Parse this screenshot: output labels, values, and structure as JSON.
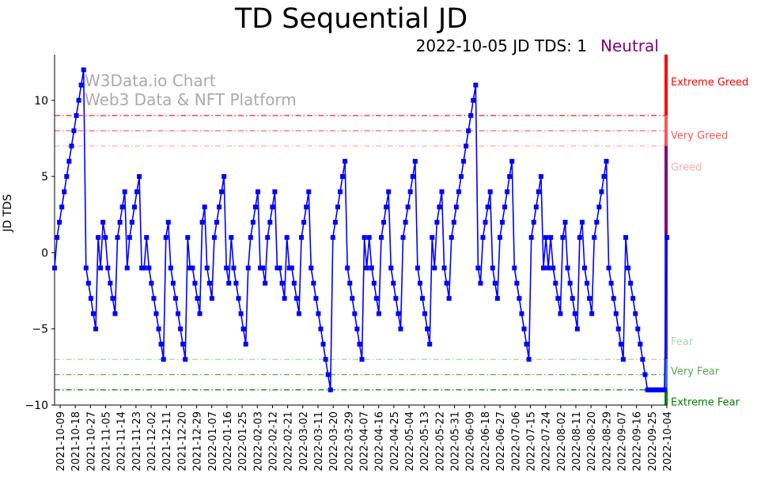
{
  "header": {
    "title": "TD Sequential JD",
    "subtitle": "2022-10-05 JD TDS: 1",
    "state": "Neutral",
    "state_color": "#800080"
  },
  "watermark": {
    "line1": "W3Data.io Chart",
    "line2": "Web3 Data & NFT Platform"
  },
  "chart_data": {
    "type": "line",
    "ylabel": "JD TDS",
    "ylim": [
      -10,
      13
    ],
    "yticks": [
      -10,
      -5,
      0,
      5,
      10
    ],
    "x_start": "2021-10-09",
    "x_end": "2022-10-05",
    "xtick_labels": [
      "2021-10-09",
      "2021-10-18",
      "2021-10-27",
      "2021-11-05",
      "2021-11-14",
      "2021-11-23",
      "2021-12-02",
      "2021-12-11",
      "2021-12-20",
      "2021-12-29",
      "2022-01-07",
      "2022-01-16",
      "2022-01-25",
      "2022-02-03",
      "2022-02-12",
      "2022-02-21",
      "2022-03-02",
      "2022-03-11",
      "2022-03-20",
      "2022-03-29",
      "2022-04-07",
      "2022-04-16",
      "2022-04-25",
      "2022-05-04",
      "2022-05-13",
      "2022-05-22",
      "2022-05-31",
      "2022-06-09",
      "2022-06-18",
      "2022-06-27",
      "2022-07-06",
      "2022-07-15",
      "2022-07-24",
      "2022-08-02",
      "2022-08-11",
      "2022-08-20",
      "2022-08-29",
      "2022-09-07",
      "2022-09-16",
      "2022-09-25",
      "2022-10-04"
    ],
    "series": [
      {
        "name": "JD TDS",
        "color": "#0000ff",
        "values": [
          -1,
          1,
          2,
          3,
          4,
          5,
          6,
          7,
          8,
          9,
          10,
          11,
          12,
          -1,
          -2,
          -3,
          -4,
          -5,
          1,
          -1,
          2,
          1,
          -1,
          -2,
          -3,
          -4,
          1,
          2,
          3,
          4,
          -1,
          1,
          2,
          3,
          4,
          5,
          -1,
          -1,
          1,
          -1,
          -2,
          -3,
          -4,
          -5,
          -6,
          -7,
          1,
          2,
          -1,
          -2,
          -3,
          -4,
          -5,
          -6,
          -7,
          1,
          -1,
          -1,
          -2,
          -3,
          -4,
          2,
          3,
          -1,
          -2,
          -3,
          1,
          2,
          3,
          4,
          5,
          -1,
          -2,
          1,
          -1,
          -2,
          -3,
          -4,
          -5,
          -6,
          -1,
          1,
          2,
          3,
          4,
          -1,
          -1,
          -2,
          1,
          2,
          3,
          4,
          -1,
          -1,
          -2,
          -3,
          1,
          -1,
          -1,
          -2,
          -3,
          -4,
          1,
          2,
          3,
          4,
          -1,
          -2,
          -3,
          -4,
          -5,
          -6,
          -7,
          -8,
          -9,
          1,
          2,
          3,
          4,
          5,
          6,
          -1,
          -2,
          -3,
          -4,
          -5,
          -6,
          -7,
          1,
          -1,
          1,
          -1,
          -2,
          -3,
          -4,
          1,
          2,
          3,
          4,
          -1,
          -2,
          -3,
          -4,
          -5,
          1,
          2,
          3,
          4,
          5,
          6,
          -1,
          -2,
          -3,
          -4,
          -5,
          -6,
          1,
          -1,
          2,
          3,
          4,
          -1,
          -2,
          -3,
          1,
          2,
          3,
          4,
          5,
          6,
          7,
          8,
          9,
          10,
          11,
          -1,
          -2,
          1,
          2,
          3,
          4,
          -1,
          -2,
          -3,
          1,
          2,
          3,
          4,
          5,
          6,
          -1,
          -2,
          -3,
          -4,
          -5,
          -6,
          -7,
          1,
          2,
          3,
          4,
          5,
          -1,
          1,
          -1,
          1,
          -1,
          -2,
          -3,
          -4,
          1,
          2,
          -1,
          -2,
          -3,
          -4,
          -5,
          1,
          2,
          -1,
          -2,
          -3,
          -4,
          1,
          2,
          3,
          4,
          5,
          6,
          -1,
          -2,
          -3,
          -4,
          -5,
          -6,
          -7,
          1,
          -1,
          -2,
          -3,
          -4,
          -5,
          -6,
          -7,
          -8,
          -9,
          -9,
          -9,
          -9,
          -9,
          -9,
          -9,
          -9,
          1
        ]
      }
    ],
    "threshold_lines": [
      {
        "label": "Extreme Greed",
        "value": 9,
        "color": "#ff0000"
      },
      {
        "label": "Very Greed",
        "value": 8,
        "color": "#ff5555"
      },
      {
        "label": "Greed",
        "value": 7,
        "color": "#ffaaaa"
      },
      {
        "label": "Fear",
        "value": -7,
        "color": "#aad5aa"
      },
      {
        "label": "Very Fear",
        "value": -8,
        "color": "#55aa55"
      },
      {
        "label": "Extreme Fear",
        "value": -9,
        "color": "#008000"
      }
    ],
    "zone_bar": [
      {
        "from": 9,
        "to": 13,
        "color": "#ff0000"
      },
      {
        "from": 7,
        "to": 9,
        "color": "#ff5555"
      },
      {
        "from": 1,
        "to": 7,
        "color": "#800080"
      },
      {
        "from": -7,
        "to": 1,
        "color": "#2b2bd4"
      },
      {
        "from": -9,
        "to": -7,
        "color": "#4477dd"
      },
      {
        "from": -10,
        "to": -9,
        "color": "#008000"
      }
    ]
  }
}
